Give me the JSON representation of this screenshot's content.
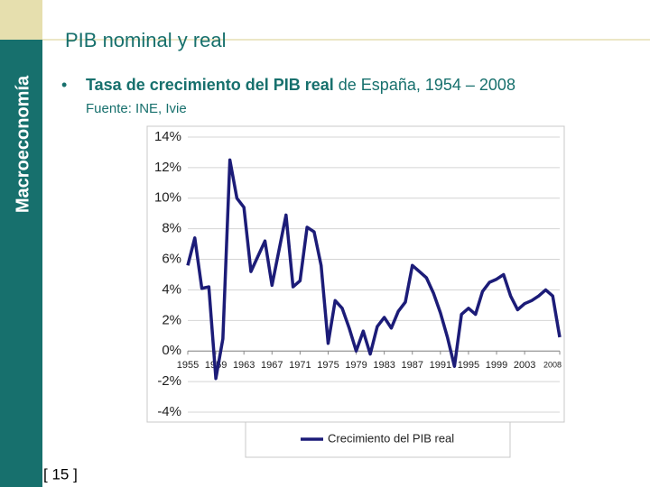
{
  "slide": {
    "sidebar": "Macroeconomía",
    "heading": "PIB nominal y real",
    "bullet_bold": "Tasa de crecimiento del PIB real",
    "bullet_rest": " de España, 1954 – 2008",
    "source": "Fuente: INE, Ivie",
    "page": "[ 15 ]"
  },
  "chart_data": {
    "type": "line",
    "x": [
      1955,
      1956,
      1957,
      1958,
      1959,
      1960,
      1961,
      1962,
      1963,
      1964,
      1965,
      1966,
      1967,
      1968,
      1969,
      1970,
      1971,
      1972,
      1973,
      1974,
      1975,
      1976,
      1977,
      1978,
      1979,
      1980,
      1981,
      1982,
      1983,
      1984,
      1985,
      1986,
      1987,
      1988,
      1989,
      1990,
      1991,
      1992,
      1993,
      1994,
      1995,
      1996,
      1997,
      1998,
      1999,
      2000,
      2001,
      2002,
      2003,
      2004,
      2005,
      2006,
      2007,
      2008
    ],
    "series": [
      {
        "name": "Crecimiento del PIB real",
        "color": "#1c1c78",
        "values": [
          5.6,
          7.4,
          4.1,
          4.2,
          -1.8,
          0.8,
          12.5,
          10.0,
          9.4,
          5.2,
          6.2,
          7.2,
          4.3,
          6.6,
          8.9,
          4.2,
          4.6,
          8.1,
          7.8,
          5.6,
          0.5,
          3.3,
          2.8,
          1.5,
          0.0,
          1.3,
          -0.2,
          1.6,
          2.2,
          1.5,
          2.6,
          3.2,
          5.6,
          5.2,
          4.8,
          3.8,
          2.5,
          0.9,
          -1.0,
          2.4,
          2.8,
          2.4,
          3.9,
          4.5,
          4.7,
          5.0,
          3.6,
          2.7,
          3.1,
          3.3,
          3.6,
          4.0,
          3.6,
          0.9
        ]
      }
    ],
    "xlim": [
      1955,
      2008
    ],
    "xticks": [
      1955,
      1959,
      1963,
      1967,
      1971,
      1975,
      1979,
      1983,
      1987,
      1991,
      1995,
      1999,
      2003,
      2008
    ],
    "ylim": [
      -4,
      14
    ],
    "yticks": [
      {
        "value": -4,
        "label": "-4%"
      },
      {
        "value": -2,
        "label": "-2%"
      },
      {
        "value": 0,
        "label": "0%"
      },
      {
        "value": 2,
        "label": "2%"
      },
      {
        "value": 4,
        "label": "4%"
      },
      {
        "value": 6,
        "label": "6%"
      },
      {
        "value": 8,
        "label": "8%"
      },
      {
        "value": 10,
        "label": "10%"
      },
      {
        "value": 12,
        "label": "12%"
      },
      {
        "value": 14,
        "label": "14%"
      }
    ],
    "grid": true,
    "legend": "bottom"
  }
}
